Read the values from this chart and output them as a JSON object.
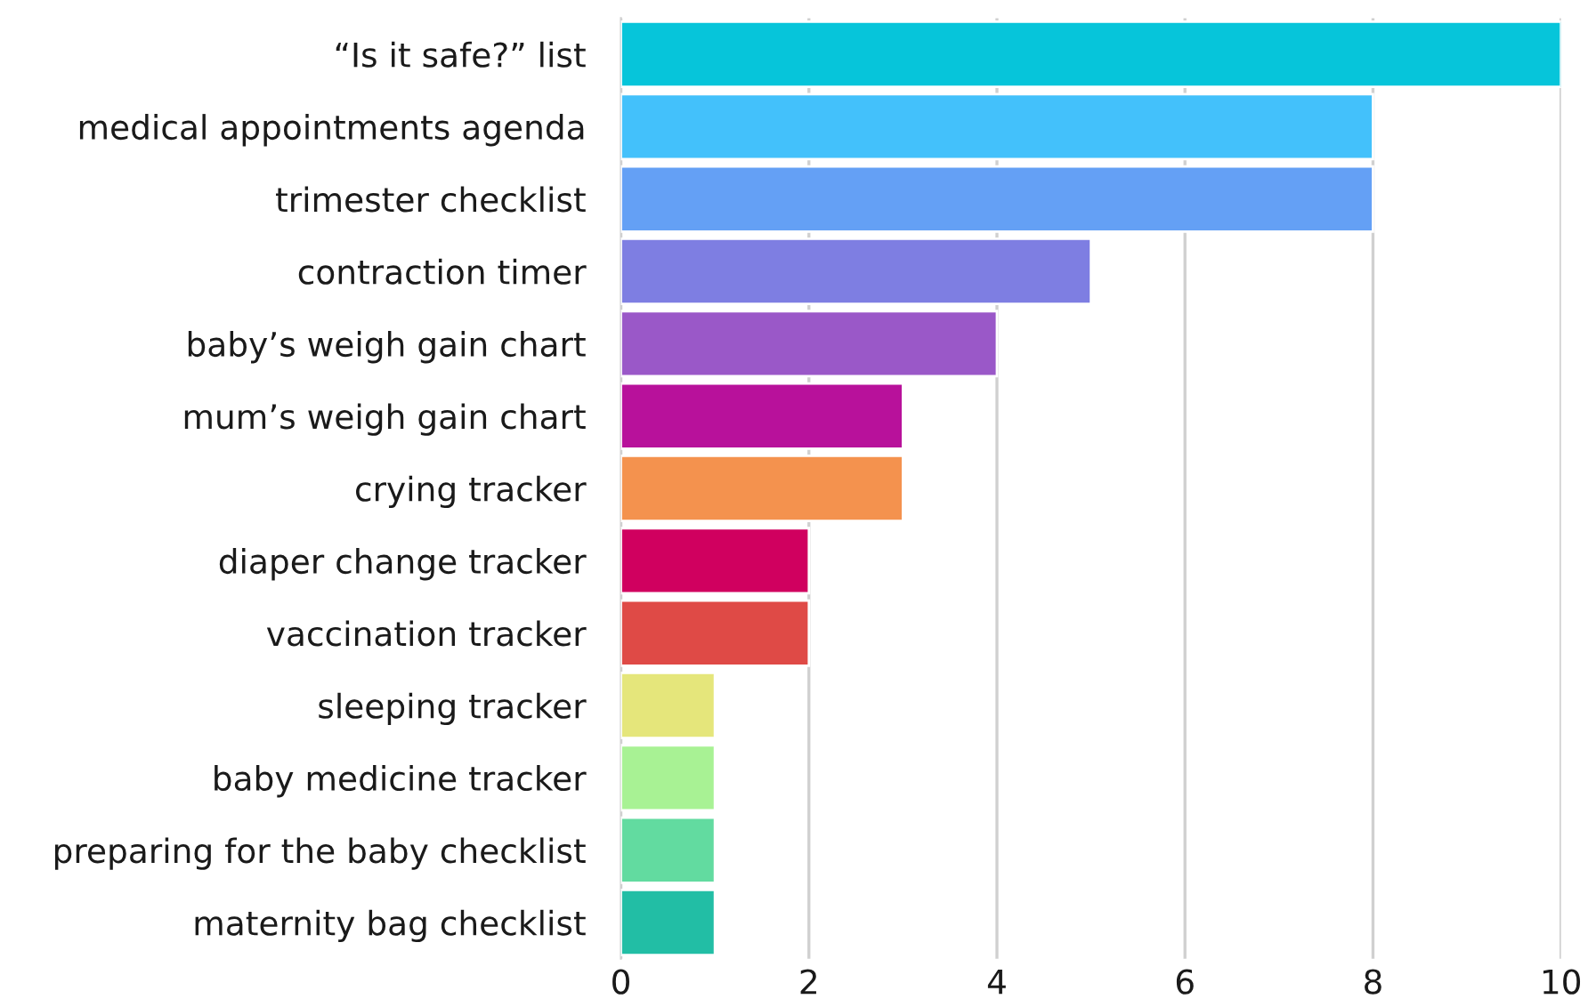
{
  "chart_data": {
    "type": "bar",
    "orientation": "horizontal",
    "categories": [
      "“Is it safe?” list",
      "medical appointments agenda",
      "trimester checklist",
      "contraction timer",
      "baby’s weigh gain chart",
      "mum’s weigh gain chart",
      "crying tracker",
      "diaper change tracker",
      "vaccination tracker",
      "sleeping tracker",
      "baby medicine tracker",
      "preparing for the baby checklist",
      "maternity bag checklist"
    ],
    "values": [
      10,
      8,
      8,
      5,
      4,
      3,
      3,
      2,
      2,
      1,
      1,
      1,
      1
    ],
    "colors": [
      "#06c5da",
      "#43c1fb",
      "#64a0f5",
      "#7e7ee2",
      "#9a58c8",
      "#b8119b",
      "#f4924e",
      "#d0005f",
      "#df4a46",
      "#e5e67b",
      "#a8f294",
      "#62dba0",
      "#22bea5"
    ],
    "xlim": [
      0,
      10
    ],
    "xticks": [
      0,
      2,
      4,
      6,
      8,
      10
    ],
    "grid": "x"
  }
}
